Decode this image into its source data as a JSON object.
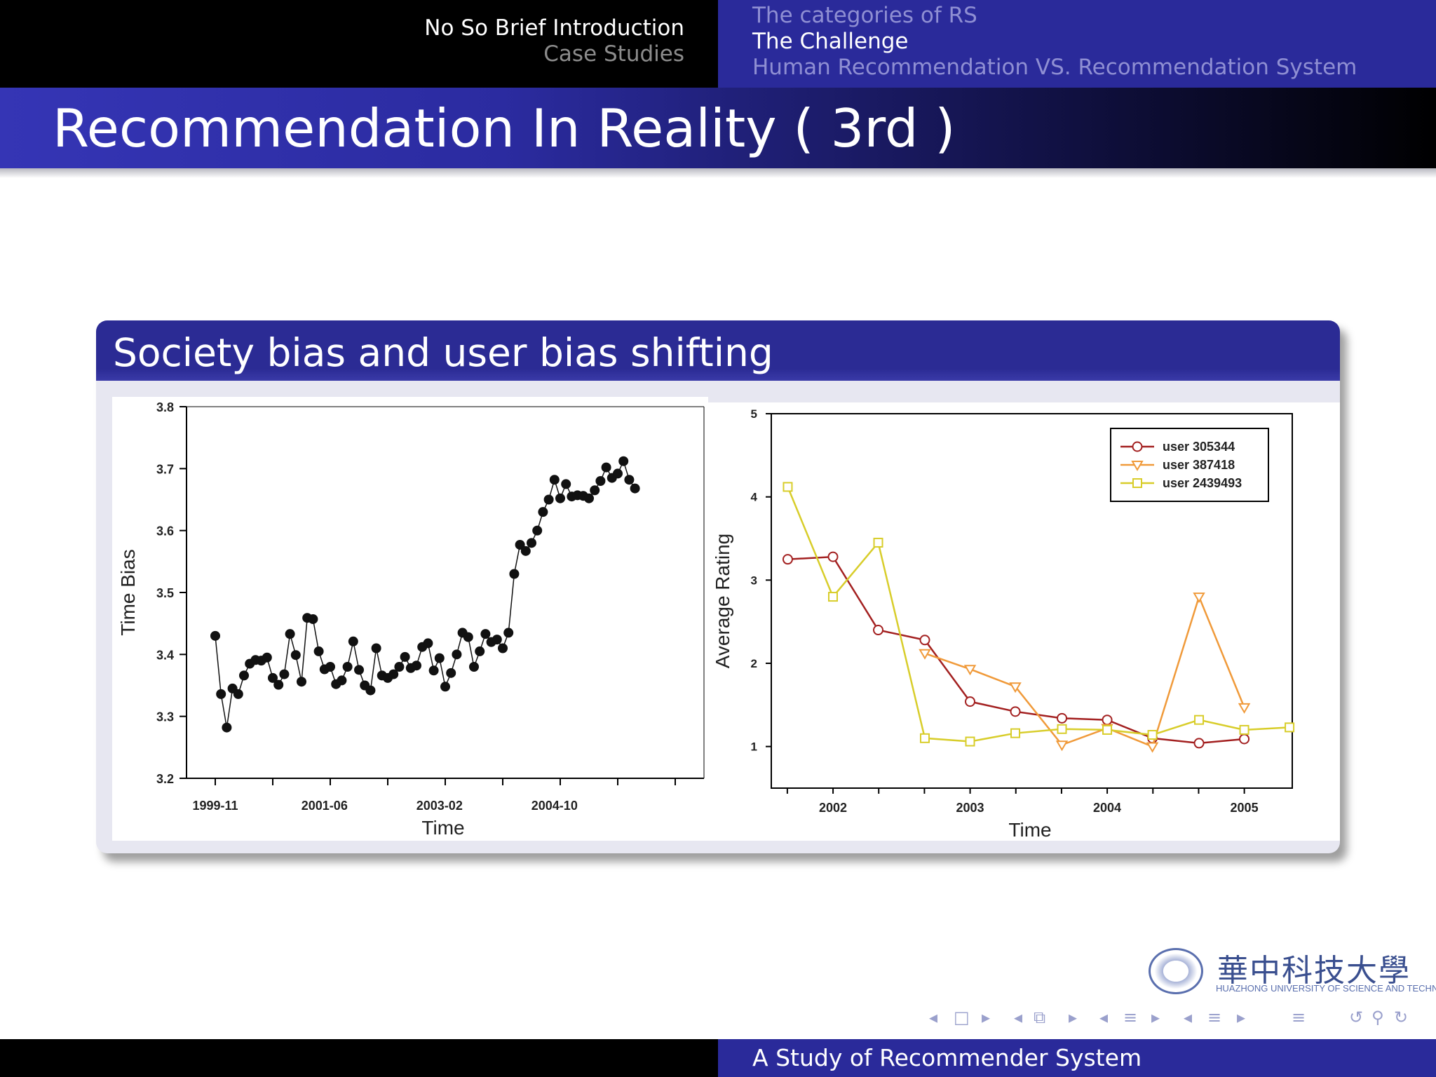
{
  "header": {
    "sections": [
      {
        "label": "No So Brief Introduction",
        "active": true
      },
      {
        "label": "Case Studies",
        "active": false
      }
    ],
    "subsections": [
      {
        "label": "The categories of RS",
        "active": false
      },
      {
        "label": "The Challenge",
        "active": true
      },
      {
        "label": "Human Recommendation VS. Recommendation System",
        "active": false
      }
    ]
  },
  "frame_title": "Recommendation In Reality ( 3rd )",
  "block": {
    "title": "Society bias and user bias shifting"
  },
  "chart_data": [
    {
      "type": "scatter",
      "xlabel": "Time",
      "ylabel": "Time Bias",
      "ylim": [
        3.2,
        3.8
      ],
      "yticks": [
        "3.2",
        "3.3",
        "3.4",
        "3.5",
        "3.6",
        "3.7",
        "3.8"
      ],
      "xticks": [
        "1999-11",
        "2001-06",
        "2003-02",
        "2004-10"
      ],
      "xtick_months": [
        0,
        19,
        39,
        59
      ],
      "x_months": [
        0,
        1,
        2,
        3,
        4,
        5,
        6,
        7,
        8,
        9,
        10,
        11,
        12,
        13,
        14,
        15,
        16,
        17,
        18,
        19,
        20,
        21,
        22,
        23,
        24,
        25,
        26,
        27,
        28,
        29,
        30,
        31,
        32,
        33,
        34,
        35,
        36,
        37,
        38,
        39,
        40,
        41,
        42,
        43,
        44,
        45,
        46,
        47,
        48,
        49,
        50,
        51,
        52,
        53,
        54,
        55,
        56,
        57,
        58,
        59,
        60,
        61,
        62,
        63,
        64,
        65,
        66,
        67,
        68,
        69,
        70,
        71,
        72,
        73
      ],
      "values": [
        3.43,
        3.336,
        3.282,
        3.345,
        3.336,
        3.366,
        3.385,
        3.391,
        3.39,
        3.395,
        3.362,
        3.351,
        3.368,
        3.433,
        3.399,
        3.356,
        3.459,
        3.457,
        3.405,
        3.376,
        3.38,
        3.352,
        3.358,
        3.38,
        3.421,
        3.375,
        3.35,
        3.342,
        3.41,
        3.366,
        3.362,
        3.368,
        3.38,
        3.396,
        3.378,
        3.382,
        3.412,
        3.418,
        3.374,
        3.394,
        3.348,
        3.37,
        3.4,
        3.435,
        3.428,
        3.38,
        3.405,
        3.433,
        3.42,
        3.424,
        3.41,
        3.435,
        3.53,
        3.577,
        3.567,
        3.58,
        3.6,
        3.63,
        3.65,
        3.682,
        3.652,
        3.675,
        3.655,
        3.657,
        3.656,
        3.652,
        3.665,
        3.68,
        3.702,
        3.685,
        3.692,
        3.712,
        3.682,
        3.668
      ],
      "series": [
        {
          "name": "",
          "marker": "filled-circle",
          "color": "#111111"
        }
      ]
    },
    {
      "type": "line",
      "xlabel": "Time",
      "ylabel": "Average Rating",
      "ylim": [
        0.5,
        5
      ],
      "yticks": [
        "1",
        "2",
        "3",
        "4",
        "5"
      ],
      "xticks": [
        "2002",
        "2003",
        "2004",
        "2005"
      ],
      "xlim": [
        2001.55,
        2005.35
      ],
      "series": [
        {
          "name": "user 305344",
          "color": "#a32020",
          "marker": "circle",
          "x": [
            2001.67,
            2002.0,
            2002.33,
            2002.67,
            2003.0,
            2003.33,
            2003.67,
            2004.0,
            2004.33,
            2004.67,
            2005.0
          ],
          "y": [
            3.25,
            3.28,
            2.4,
            2.28,
            1.54,
            1.42,
            1.34,
            1.32,
            1.1,
            1.04,
            1.09
          ]
        },
        {
          "name": "user 387418",
          "color": "#f09a3a",
          "marker": "triangle-down",
          "x": [
            2002.67,
            2003.0,
            2003.33,
            2003.67,
            2004.0,
            2004.33,
            2004.67,
            2005.0
          ],
          "y": [
            2.12,
            1.93,
            1.72,
            1.02,
            1.22,
            1.0,
            2.8,
            1.47
          ]
        },
        {
          "name": "user 2439493",
          "color": "#d8cd2a",
          "marker": "square",
          "x": [
            2001.67,
            2002.0,
            2002.33,
            2002.67,
            2003.0,
            2003.33,
            2003.67,
            2004.0,
            2004.33,
            2004.67,
            2005.0,
            2005.33
          ],
          "y": [
            4.12,
            2.8,
            3.45,
            1.1,
            1.06,
            1.16,
            1.21,
            1.2,
            1.14,
            1.32,
            1.2,
            1.23
          ]
        }
      ],
      "legend": "top-right"
    }
  ],
  "footer": {
    "title": "A Study of Recommender System"
  },
  "logo": {
    "cn": "華中科技大學",
    "en": "HUAZHONG UNIVERSITY OF SCIENCE AND TECHNOLOGY"
  },
  "nav": {
    "glyphs": [
      "◂",
      "□",
      "▸",
      "◂",
      "⧉",
      "▸",
      "◂",
      "≡",
      "▸",
      "◂",
      "≡",
      "▸",
      "≡",
      "↺",
      "⚲",
      "↻"
    ]
  }
}
